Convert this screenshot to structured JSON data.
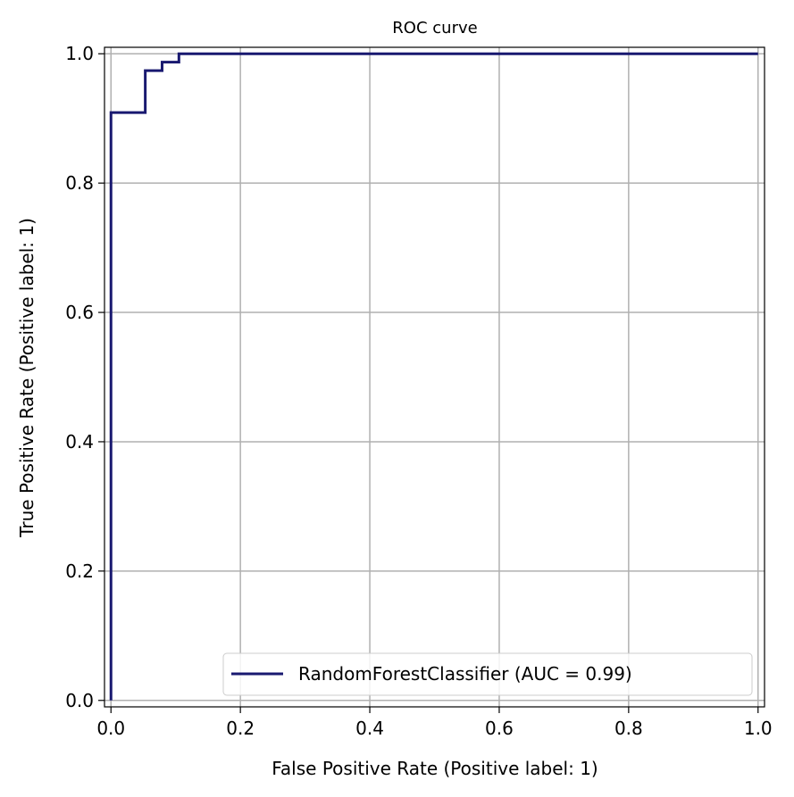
{
  "chart_data": {
    "type": "line",
    "title": "ROC curve",
    "xlabel": "False Positive Rate (Positive label: 1)",
    "ylabel": "True Positive Rate (Positive label: 1)",
    "xlim": [
      -0.01,
      1.01
    ],
    "ylim": [
      -0.01,
      1.01
    ],
    "xticks": [
      0.0,
      0.2,
      0.4,
      0.6,
      0.8,
      1.0
    ],
    "yticks": [
      0.0,
      0.2,
      0.4,
      0.6,
      0.8,
      1.0
    ],
    "xtick_labels": [
      "0.0",
      "0.2",
      "0.4",
      "0.6",
      "0.8",
      "1.0"
    ],
    "ytick_labels": [
      "0.0",
      "0.2",
      "0.4",
      "0.6",
      "0.8",
      "1.0"
    ],
    "grid": true,
    "legend_position": "lower-right",
    "series": [
      {
        "name": "RandomForestClassifier (AUC = 0.99)",
        "color": "#191970",
        "drawstyle": "steps-post",
        "x": [
          0.0,
          0.0,
          0.053,
          0.053,
          0.079,
          0.079,
          0.105,
          0.105,
          1.0
        ],
        "y": [
          0.0,
          0.909,
          0.909,
          0.974,
          0.974,
          0.987,
          0.987,
          1.0,
          1.0
        ]
      }
    ]
  }
}
